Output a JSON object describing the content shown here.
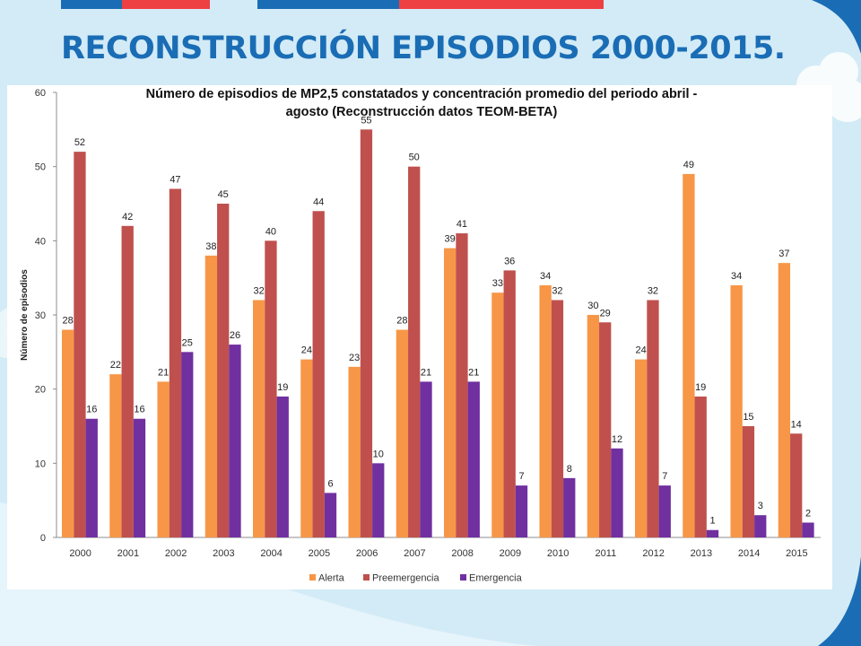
{
  "slide": {
    "title": "RECONSTRUCCIÓN EPISODIOS 2000-2015.",
    "colors": {
      "blue_bar": "#1a6db5",
      "red_bar": "#ee3f43",
      "background": "#d3ebf6"
    }
  },
  "chart_data": {
    "type": "bar",
    "title_lines": [
      "Número de episodios de MP2,5 constatados y concentración promedio del periodo abril -",
      "agosto (Reconstrucción datos TEOM-BETA)"
    ],
    "xlabel": "",
    "ylabel": "Número de episodios",
    "ylim": [
      0,
      60
    ],
    "yticks": [
      0,
      10,
      20,
      30,
      40,
      50,
      60
    ],
    "grid": false,
    "legend_position": "bottom",
    "categories": [
      "2000",
      "2001",
      "2002",
      "2003",
      "2004",
      "2005",
      "2006",
      "2007",
      "2008",
      "2009",
      "2010",
      "2011",
      "2012",
      "2013",
      "2014",
      "2015"
    ],
    "series": [
      {
        "name": "Alerta",
        "color": "#f79646",
        "values": [
          28,
          22,
          21,
          38,
          32,
          24,
          23,
          28,
          39,
          33,
          34,
          30,
          24,
          49,
          34,
          37
        ]
      },
      {
        "name": "Preemergencia",
        "color": "#c0504d",
        "values": [
          52,
          42,
          47,
          45,
          40,
          44,
          55,
          50,
          41,
          36,
          32,
          29,
          32,
          19,
          15,
          14
        ]
      },
      {
        "name": "Emergencia",
        "color": "#7030a0",
        "values": [
          16,
          16,
          25,
          26,
          19,
          6,
          10,
          21,
          21,
          7,
          8,
          12,
          7,
          1,
          3,
          2
        ]
      }
    ]
  }
}
